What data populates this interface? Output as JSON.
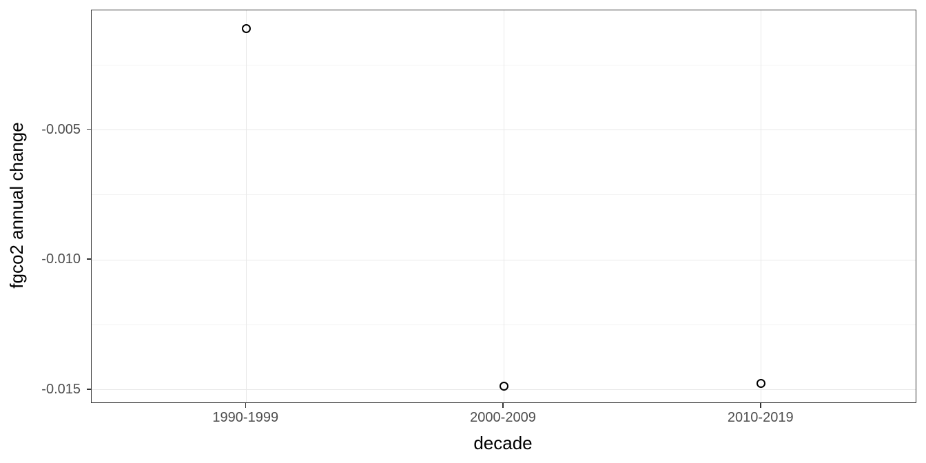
{
  "chart_data": {
    "type": "scatter",
    "title": "",
    "xlabel": "decade",
    "ylabel": "fgco2 annual change",
    "categories": [
      "1990-1999",
      "2000-2009",
      "2010-2019"
    ],
    "values": [
      -0.0011,
      -0.01485,
      -0.01476
    ],
    "ylim": [
      -0.01548,
      -0.0004
    ],
    "y_major_ticks": [
      -0.005,
      -0.01,
      -0.015
    ],
    "y_major_tick_labels": [
      "-0.005",
      "-0.010",
      "-0.015"
    ],
    "y_minor_ticks": [
      -0.0025,
      -0.0075,
      -0.0125
    ],
    "grid": "horizontal major+minor, vertical major at categories",
    "legend": "none",
    "marker": "open-circle"
  },
  "style": {
    "background": "#FFFFFF",
    "panel_background": "#FFFFFF",
    "panel_border": "#333333",
    "grid_major_color": "#E8E8E8",
    "grid_minor_color": "#F3F3F3",
    "tick_color": "#333333",
    "tick_label_color": "#4D4D4D",
    "axis_title_color": "#000000",
    "point_color": "#000000"
  }
}
